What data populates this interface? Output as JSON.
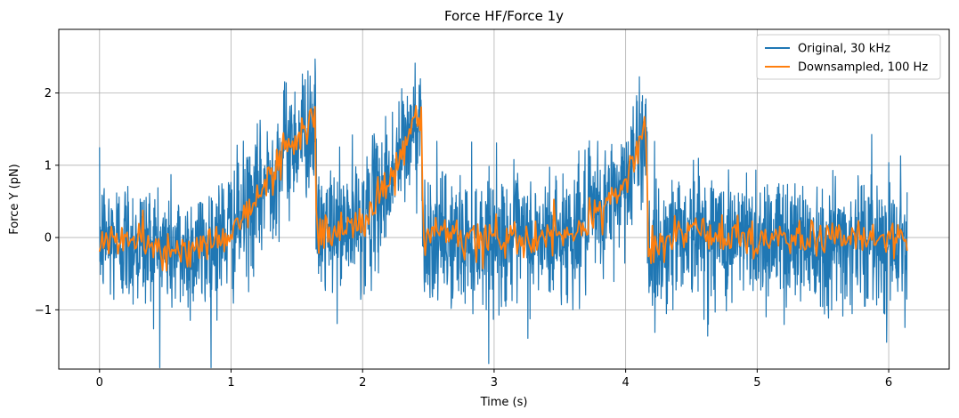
{
  "chart_data": {
    "type": "line",
    "title": "Force HF/Force 1y",
    "xlabel": "Time (s)",
    "ylabel": "Force Y (pN)",
    "xlim": [
      -0.31,
      6.46
    ],
    "ylim": [
      -1.82,
      2.88
    ],
    "xticks": [
      0,
      1,
      2,
      3,
      4,
      5,
      6
    ],
    "xtick_labels": [
      "0",
      "1",
      "2",
      "3",
      "4",
      "5",
      "6"
    ],
    "yticks": [
      -1,
      0,
      1,
      2
    ],
    "ytick_labels": [
      "−1",
      "0",
      "1",
      "2"
    ],
    "grid": true,
    "legend_position": "top-right",
    "series": [
      {
        "name": "Original, 30 kHz",
        "color": "#1f77b4",
        "noise_amplitude": 0.45,
        "x": [
          0.0,
          0.2,
          0.4,
          0.6,
          0.8,
          1.0,
          1.2,
          1.4,
          1.6,
          1.64,
          1.65,
          1.8,
          2.0,
          2.2,
          2.4,
          2.45,
          2.46,
          2.7,
          3.0,
          3.3,
          3.6,
          3.9,
          4.1,
          4.16,
          4.17,
          4.4,
          4.8,
          5.2,
          5.6,
          6.0,
          6.14
        ],
        "y": [
          0.0,
          -0.05,
          -0.1,
          -0.2,
          -0.15,
          0.1,
          0.5,
          1.2,
          1.55,
          1.6,
          0.05,
          0.1,
          0.2,
          0.8,
          1.55,
          1.65,
          0.0,
          -0.05,
          0.0,
          -0.05,
          0.05,
          0.5,
          1.2,
          1.6,
          -0.3,
          0.1,
          0.0,
          0.0,
          -0.05,
          0.0,
          -0.05
        ]
      },
      {
        "name": "Downsampled, 100 Hz",
        "color": "#ff7f0e",
        "noise_amplitude": 0.13,
        "x": [
          0.0,
          0.2,
          0.4,
          0.6,
          0.8,
          1.0,
          1.2,
          1.4,
          1.6,
          1.64,
          1.65,
          1.8,
          2.0,
          2.2,
          2.4,
          2.45,
          2.46,
          2.7,
          3.0,
          3.3,
          3.6,
          3.9,
          4.1,
          4.16,
          4.17,
          4.4,
          4.8,
          5.2,
          5.6,
          6.0,
          6.14
        ],
        "y": [
          0.0,
          -0.05,
          -0.1,
          -0.2,
          -0.15,
          0.1,
          0.5,
          1.2,
          1.55,
          1.6,
          0.05,
          0.1,
          0.2,
          0.8,
          1.55,
          1.65,
          0.0,
          -0.05,
          0.0,
          -0.05,
          0.05,
          0.5,
          1.2,
          1.6,
          -0.3,
          0.1,
          0.0,
          0.0,
          -0.05,
          0.0,
          -0.05
        ]
      }
    ]
  }
}
